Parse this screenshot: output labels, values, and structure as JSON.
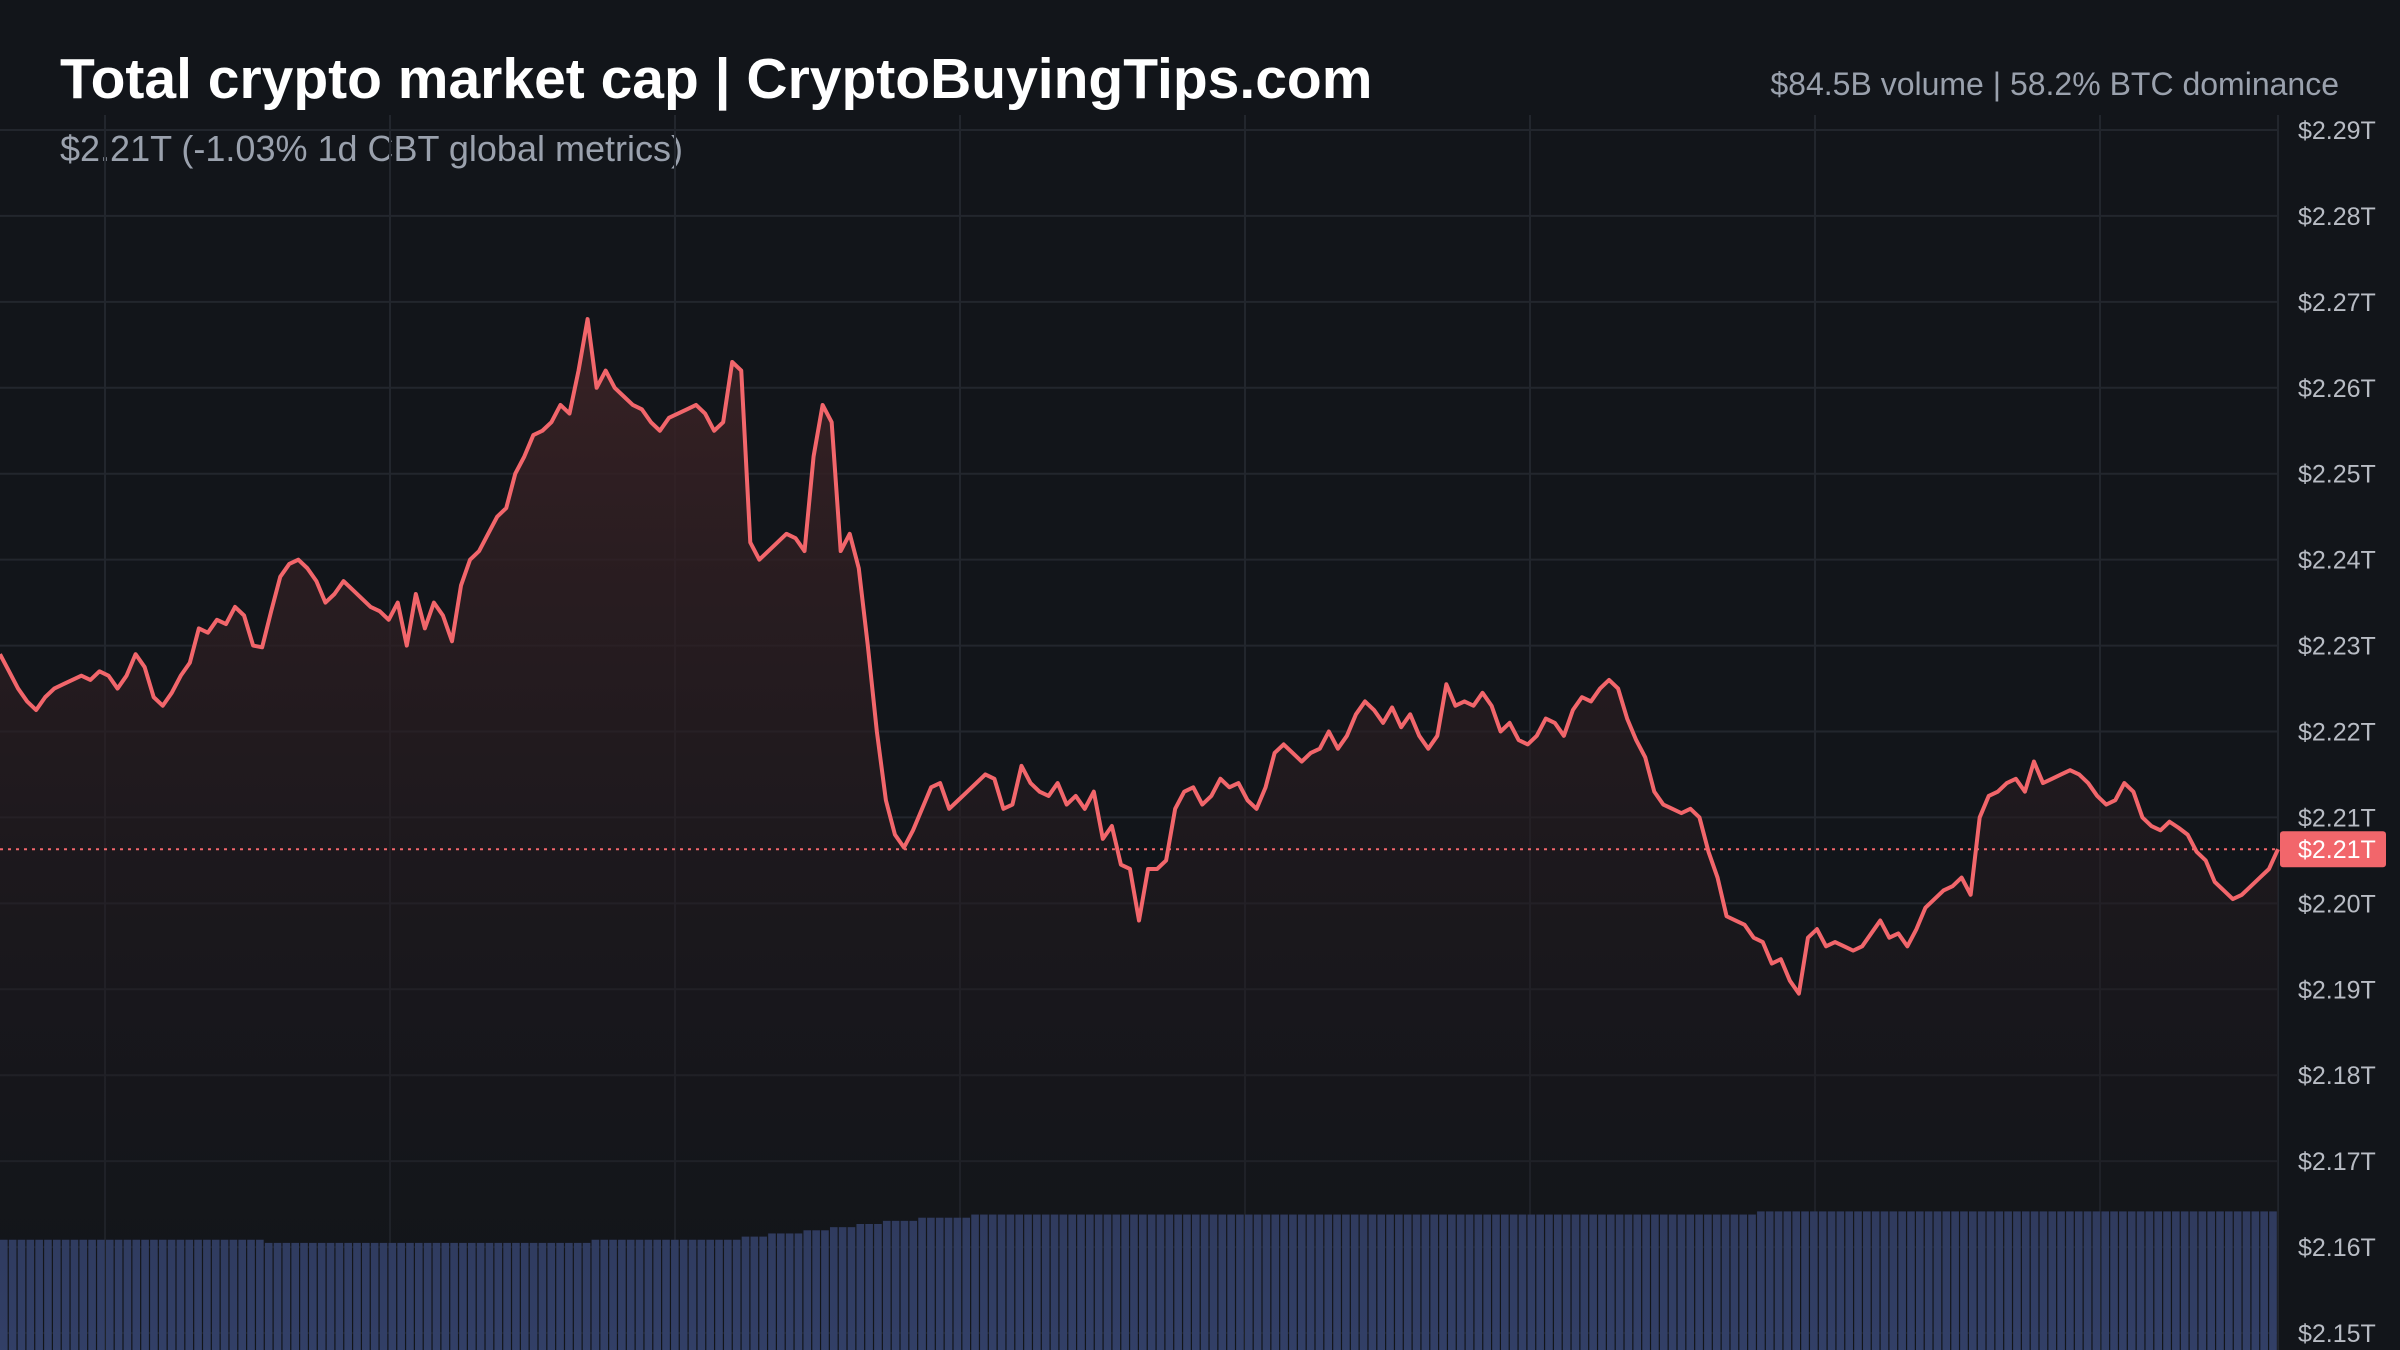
{
  "header": {
    "title": "Total crypto market cap | CryptoBuyingTips.com",
    "subtitle": "$2.21T (-1.03% 1d CBT global metrics)",
    "stats": "$84.5B volume | 58.2% BTC dominance"
  },
  "colors": {
    "background": "#12151a",
    "grid": "#22262d",
    "line": "#f2666b",
    "area_top": "#3a2225",
    "volume_bar": "#3a4a7a",
    "price_tag_bg": "#f2666b",
    "price_tag_text": "#ffffff",
    "axis_text": "#b8bcc4",
    "dotted_line": "#f2666b"
  },
  "chart_data": {
    "type": "area",
    "y_axis": {
      "position": "right",
      "ticks": [
        "$2.29T",
        "$2.28T",
        "$2.27T",
        "$2.26T",
        "$2.25T",
        "$2.24T",
        "$2.23T",
        "$2.22T",
        "$2.21T",
        "$2.20T",
        "$2.19T",
        "$2.18T",
        "$2.17T",
        "$2.16T",
        "$2.15T"
      ],
      "tick_values": [
        2.29,
        2.28,
        2.27,
        2.26,
        2.25,
        2.24,
        2.23,
        2.22,
        2.21,
        2.2,
        2.19,
        2.18,
        2.17,
        2.16,
        2.15
      ],
      "ylim": [
        2.15,
        2.29
      ]
    },
    "current_price_label": "$2.21T",
    "current_value": 2.2063,
    "grid": true,
    "series": [
      {
        "type": "line",
        "values": [
          2.229,
          2.227,
          2.225,
          2.2235,
          2.2225,
          2.224,
          2.225,
          2.2255,
          2.226,
          2.2265,
          2.226,
          2.227,
          2.2265,
          2.225,
          2.2265,
          2.229,
          2.2275,
          2.224,
          2.223,
          2.2245,
          2.2265,
          2.228,
          2.232,
          2.2315,
          2.233,
          2.2325,
          2.2345,
          2.2335,
          2.23,
          2.2298,
          2.234,
          2.238,
          2.2395,
          2.24,
          2.239,
          2.2375,
          2.235,
          2.236,
          2.2375,
          2.2365,
          2.2355,
          2.2345,
          2.234,
          2.233,
          2.235,
          2.23,
          2.236,
          2.232,
          2.235,
          2.2335,
          2.2305,
          2.237,
          2.24,
          2.241,
          2.243,
          2.245,
          2.246,
          2.25,
          2.252,
          2.2545,
          2.255,
          2.256,
          2.258,
          2.257,
          2.262,
          2.268,
          2.26,
          2.262,
          2.26,
          2.259,
          2.258,
          2.2575,
          2.256,
          2.255,
          2.2565,
          2.257,
          2.2575,
          2.258,
          2.257,
          2.255,
          2.256,
          2.263,
          2.262,
          2.242,
          2.24,
          2.241,
          2.242,
          2.243,
          2.2425,
          2.241,
          2.252,
          2.258,
          2.256,
          2.241,
          2.243,
          2.239,
          2.23,
          2.22,
          2.212,
          2.208,
          2.2065,
          2.2085,
          2.211,
          2.2135,
          2.214,
          2.211,
          2.212,
          2.213,
          2.214,
          2.215,
          2.2145,
          2.211,
          2.2115,
          2.216,
          2.214,
          2.213,
          2.2125,
          2.214,
          2.2115,
          2.2125,
          2.211,
          2.213,
          2.2075,
          2.209,
          2.2045,
          2.204,
          2.198,
          2.204,
          2.204,
          2.205,
          2.211,
          2.213,
          2.2135,
          2.2115,
          2.2125,
          2.2145,
          2.2135,
          2.214,
          2.212,
          2.211,
          2.2135,
          2.2175,
          2.2185,
          2.2175,
          2.2165,
          2.2175,
          2.218,
          2.22,
          2.218,
          2.2195,
          2.222,
          2.2235,
          2.2225,
          2.221,
          2.2228,
          2.2205,
          2.222,
          2.2195,
          2.218,
          2.2195,
          2.2255,
          2.223,
          2.2235,
          2.223,
          2.2245,
          2.223,
          2.22,
          2.221,
          2.219,
          2.2185,
          2.2195,
          2.2215,
          2.221,
          2.2195,
          2.2225,
          2.224,
          2.2235,
          2.225,
          2.226,
          2.225,
          2.2215,
          2.219,
          2.217,
          2.213,
          2.2115,
          2.211,
          2.2105,
          2.211,
          2.21,
          2.206,
          2.203,
          2.1985,
          2.198,
          2.1975,
          2.196,
          2.1955,
          2.193,
          2.1935,
          2.191,
          2.1895,
          2.196,
          2.197,
          2.195,
          2.1955,
          2.195,
          2.1945,
          2.195,
          2.1965,
          2.198,
          2.196,
          2.1965,
          2.195,
          2.197,
          2.1995,
          2.2005,
          2.2015,
          2.202,
          2.203,
          2.201,
          2.21,
          2.2125,
          2.213,
          2.214,
          2.2145,
          2.213,
          2.2165,
          2.214,
          2.2145,
          2.215,
          2.2155,
          2.215,
          2.214,
          2.2125,
          2.2115,
          2.212,
          2.214,
          2.213,
          2.21,
          2.209,
          2.2085,
          2.2095,
          2.2088,
          2.208,
          2.206,
          2.205,
          2.2025,
          2.2015,
          2.2005,
          2.201,
          2.202,
          2.203,
          2.204,
          2.2063
        ]
      },
      {
        "type": "volume_bars",
        "values": [
          35,
          35,
          35,
          35,
          35,
          35,
          35,
          35,
          35,
          35,
          35,
          35,
          35,
          35,
          35,
          35,
          35,
          35,
          35,
          35,
          35,
          35,
          35,
          35,
          35,
          35,
          35,
          35,
          35,
          35,
          34,
          34,
          34,
          34,
          34,
          34,
          34,
          34,
          34,
          34,
          34,
          34,
          34,
          34,
          34,
          34,
          34,
          34,
          34,
          34,
          34,
          34,
          34,
          34,
          34,
          34,
          34,
          34,
          34,
          34,
          34,
          34,
          34,
          34,
          34,
          34,
          34,
          35,
          35,
          35,
          35,
          35,
          35,
          35,
          35,
          35,
          35,
          35,
          35,
          35,
          35,
          35,
          35,
          35,
          36,
          36,
          36,
          37,
          37,
          37,
          37,
          38,
          38,
          38,
          39,
          39,
          39,
          40,
          40,
          40,
          41,
          41,
          41,
          41,
          42,
          42,
          42,
          42,
          42,
          42,
          43,
          43,
          43,
          43,
          43,
          43,
          43,
          43,
          43,
          43,
          43,
          43,
          43,
          43,
          43,
          43,
          43,
          43,
          43,
          43,
          43,
          43,
          43,
          43,
          43,
          43,
          43,
          43,
          43,
          43,
          43,
          43,
          43,
          43,
          43,
          43,
          43,
          43,
          43,
          43,
          43,
          43,
          43,
          43,
          43,
          43,
          43,
          43,
          43,
          43,
          43,
          43,
          43,
          43,
          43,
          43,
          43,
          43,
          43,
          43,
          43,
          43,
          43,
          43,
          43,
          43,
          43,
          43,
          43,
          43,
          43,
          43,
          43,
          43,
          43,
          43,
          43,
          43,
          43,
          43,
          43,
          43,
          43,
          43,
          43,
          43,
          43,
          43,
          43,
          44,
          44,
          44,
          44,
          44,
          44,
          44,
          44,
          44,
          44,
          44,
          44,
          44,
          44,
          44,
          44,
          44,
          44,
          44,
          44,
          44,
          44,
          44,
          44,
          44,
          44,
          44,
          44,
          44,
          44,
          44,
          44,
          44,
          44,
          44,
          44,
          44,
          44,
          44,
          44,
          44,
          44,
          44,
          44,
          44,
          44,
          44,
          44,
          44,
          44,
          44,
          44,
          44,
          44,
          44,
          44,
          44,
          44,
          44
        ]
      }
    ]
  }
}
